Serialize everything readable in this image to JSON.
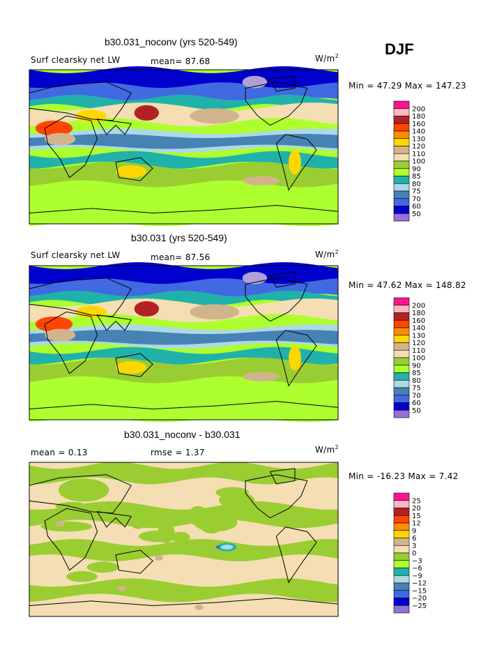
{
  "season": "DJF",
  "panels": [
    {
      "title": "b30.031_noconv (yrs 520-549)",
      "left_label": "Surf clearsky net LW",
      "stat1": "mean=  87.68",
      "stat2": "",
      "units": "W/m",
      "units_sup": "2",
      "minmax": "Min =  47.29 Max = 147.23",
      "colorbar_labels": [
        "200",
        "180",
        "160",
        "140",
        "130",
        "120",
        "110",
        "100",
        "90",
        "85",
        "80",
        "75",
        "70",
        "60",
        "50"
      ],
      "colors": [
        "#ff1493",
        "#ffb6c1",
        "#b22222",
        "#ff4500",
        "#ff8c00",
        "#ffd700",
        "#d2b48c",
        "#f5deb3",
        "#9acd32",
        "#adff2f",
        "#20b2aa",
        "#add8e6",
        "#4682b4",
        "#4169e1",
        "#0000cd",
        "#9370db"
      ]
    },
    {
      "title": "b30.031 (yrs 520-549)",
      "left_label": "Surf clearsky net LW",
      "stat1": "mean=  87.56",
      "stat2": "",
      "units": "W/m",
      "units_sup": "2",
      "minmax": "Min =  47.62 Max = 148.82",
      "colorbar_labels": [
        "200",
        "180",
        "160",
        "140",
        "130",
        "120",
        "110",
        "100",
        "90",
        "85",
        "80",
        "75",
        "70",
        "60",
        "50"
      ],
      "colors": [
        "#ff1493",
        "#ffb6c1",
        "#b22222",
        "#ff4500",
        "#ff8c00",
        "#ffd700",
        "#d2b48c",
        "#f5deb3",
        "#9acd32",
        "#adff2f",
        "#20b2aa",
        "#add8e6",
        "#4682b4",
        "#4169e1",
        "#0000cd",
        "#9370db"
      ]
    },
    {
      "title": "b30.031_noconv - b30.031",
      "left_label": "mean =     0.13",
      "stat1": "rmse =    1.37",
      "stat2": "",
      "units": "W/m",
      "units_sup": "2",
      "minmax": "Min = -16.23 Max =   7.42",
      "colorbar_labels": [
        "25",
        "20",
        "15",
        "12",
        "9",
        "6",
        "3",
        "0",
        "−3",
        "−6",
        "−9",
        "−12",
        "−15",
        "−20",
        "−25"
      ],
      "colors": [
        "#ff1493",
        "#ffb6c1",
        "#b22222",
        "#ff4500",
        "#ff8c00",
        "#ffd700",
        "#d2b48c",
        "#f5deb3",
        "#9acd32",
        "#adff2f",
        "#20b2aa",
        "#add8e6",
        "#4682b4",
        "#4169e1",
        "#0000cd",
        "#9370db"
      ]
    }
  ],
  "chart_data": [
    {
      "type": "heatmap",
      "title": "b30.031_noconv (yrs 520-549)",
      "variable": "Surf clearsky net LW",
      "mean": 87.68,
      "min": 47.29,
      "max": 147.23,
      "units": "W/m2",
      "levels": [
        50,
        60,
        70,
        75,
        80,
        85,
        90,
        100,
        110,
        120,
        130,
        140,
        160,
        180,
        200
      ]
    },
    {
      "type": "heatmap",
      "title": "b30.031 (yrs 520-549)",
      "variable": "Surf clearsky net LW",
      "mean": 87.56,
      "min": 47.62,
      "max": 148.82,
      "units": "W/m2",
      "levels": [
        50,
        60,
        70,
        75,
        80,
        85,
        90,
        100,
        110,
        120,
        130,
        140,
        160,
        180,
        200
      ]
    },
    {
      "type": "heatmap",
      "title": "b30.031_noconv - b30.031",
      "mean": 0.13,
      "rmse": 1.37,
      "min": -16.23,
      "max": 7.42,
      "units": "W/m2",
      "levels": [
        -25,
        -20,
        -15,
        -12,
        -9,
        -6,
        -3,
        0,
        3,
        6,
        9,
        12,
        15,
        20,
        25
      ]
    }
  ]
}
